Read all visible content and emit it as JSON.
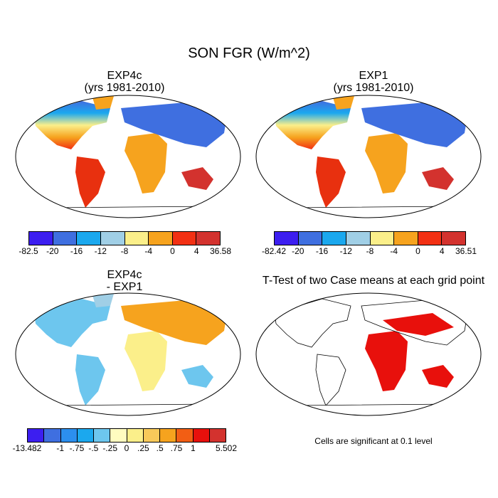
{
  "main_title": "SON FGR (W/m^2)",
  "panels": [
    {
      "title_line1": "EXP4c",
      "title_line2": "(yrs 1981-2010)"
    },
    {
      "title_line1": "EXP1",
      "title_line2": "(yrs 1981-2010)"
    },
    {
      "title_line1": "EXP4c",
      "title_line2": "- EXP1"
    },
    {
      "title_line1": "T-Test of two Case means at each grid point",
      "title_line2": ""
    }
  ],
  "colorbars": [
    {
      "labels": [
        "-82.5",
        "-20",
        "-16",
        "-12",
        "-8",
        "-4",
        "0",
        "4",
        "36.58"
      ],
      "colors": [
        "#3c1ef0",
        "#3f6fe0",
        "#1ba8ee",
        "#a0cfe6",
        "#fbef8a",
        "#f6a31e",
        "#f23013",
        "#d3322e"
      ]
    },
    {
      "labels": [
        "-82.42",
        "-20",
        "-16",
        "-12",
        "-8",
        "-4",
        "0",
        "4",
        "36.51"
      ],
      "colors": [
        "#3c1ef0",
        "#3f6fe0",
        "#1ba8ee",
        "#a0cfe6",
        "#fbef8a",
        "#f6a31e",
        "#f23013",
        "#d3322e"
      ]
    },
    {
      "labels": [
        "-13.482",
        "-1",
        "-.75",
        "-.5",
        "-.25",
        "0",
        ".25",
        ".5",
        ".75",
        "1",
        "5.502"
      ],
      "colors": [
        "#3c1ef0",
        "#3f6fe0",
        "#2c8fee",
        "#1ba8ee",
        "#6dc6ee",
        "#fffcc0",
        "#fbef8a",
        "#f8c95a",
        "#f6a31e",
        "#f25e14",
        "#e8100c",
        "#d3322e"
      ],
      "label_positions": [
        0,
        2,
        3,
        4,
        5,
        6,
        7,
        8,
        9,
        10,
        12
      ]
    }
  ],
  "footnote": "Cells are significant at 0.1 level",
  "map_colors": {
    "ocean": "#ffffff",
    "outline": "#000000",
    "ttest": "#e8100c"
  }
}
